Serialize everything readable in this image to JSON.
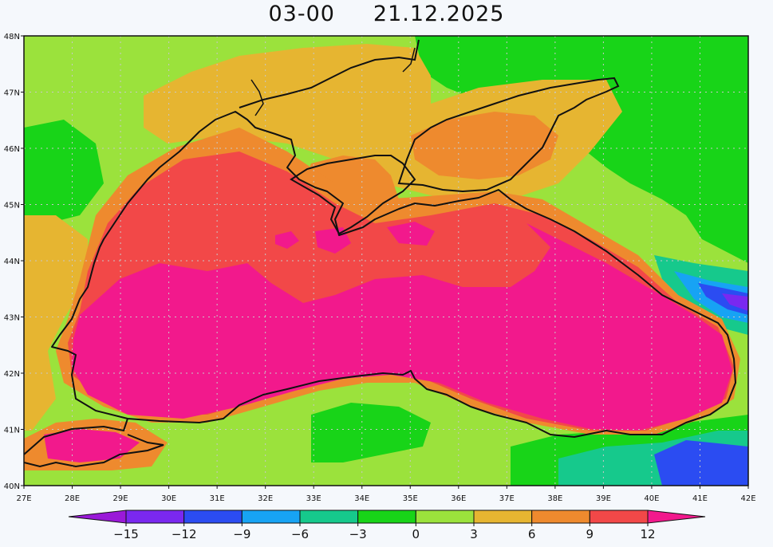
{
  "title": {
    "time": "03-00",
    "date": "21.12.2025"
  },
  "map": {
    "lon_ticks": [
      "27E",
      "28E",
      "29E",
      "30E",
      "31E",
      "32E",
      "33E",
      "34E",
      "35E",
      "36E",
      "37E",
      "38E",
      "39E",
      "40E",
      "41E",
      "42E"
    ],
    "lat_ticks": [
      "48N",
      "47N",
      "46N",
      "45N",
      "44N",
      "43N",
      "42N",
      "41N",
      "40N"
    ],
    "lon_range": [
      27,
      42
    ],
    "lat_range": [
      40,
      48
    ],
    "grid": true
  },
  "colorbar": {
    "labels": [
      "-15",
      "-12",
      "-9",
      "-6",
      "-3",
      "0",
      "3",
      "6",
      "9",
      "12"
    ],
    "bins": [
      {
        "color": "#9a19d8"
      },
      {
        "color": "#7a28f0"
      },
      {
        "color": "#2b4cf2"
      },
      {
        "color": "#17a3f4"
      },
      {
        "color": "#16c98c"
      },
      {
        "color": "#18d418"
      },
      {
        "color": "#9be23c"
      },
      {
        "color": "#e6b531"
      },
      {
        "color": "#ee8a2e"
      },
      {
        "color": "#f24848"
      },
      {
        "color": "#f2198c"
      }
    ]
  },
  "colors": {
    "land_green": "#18d418",
    "land_light_green": "#9be23c",
    "land_orange_light": "#e6b531",
    "land_orange": "#ee8a2e",
    "sea_red": "#f24848",
    "sea_magenta": "#f2198c",
    "teal": "#16c98c",
    "blue": "#2b4cf2",
    "sky": "#17a3f4",
    "purple": "#7a28f0"
  }
}
